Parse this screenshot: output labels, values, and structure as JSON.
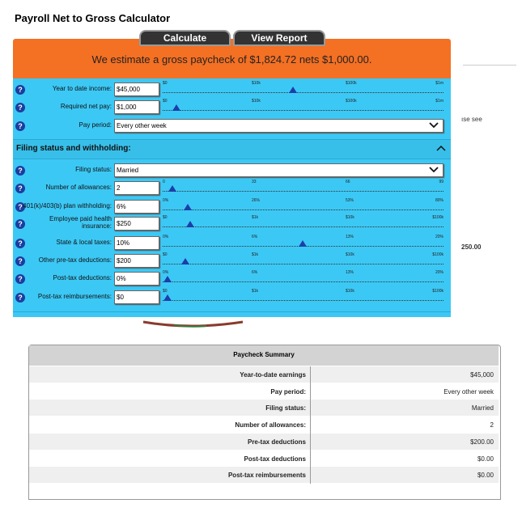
{
  "header": {
    "title": "Payroll Net to Gross Calculator"
  },
  "buttons": [
    "Calculate",
    "View Report"
  ],
  "estimate": "We estimate a gross paycheck of $1,824.72 nets $1,000.00.",
  "section_title": "Filing status and withholding:",
  "side_fragments": [
    "ıse see",
    "250.00"
  ],
  "fields": [
    {
      "label": "Year to date income:",
      "value": "$45,000",
      "scale": [
        "$0",
        "$10k",
        "$100k",
        "$1m"
      ]
    },
    {
      "label": "Required net pay:",
      "value": "$1,000",
      "scale": [
        "$0",
        "$10k",
        "$100k",
        "$1m"
      ]
    },
    {
      "label": "Pay period:",
      "value": "Every other week"
    },
    {
      "label": "Filing status:",
      "value": "Married"
    },
    {
      "label": "Number of allowances:",
      "value": "2",
      "scale": [
        "0",
        "33",
        "66",
        "99"
      ]
    },
    {
      "label": "401(k)/403(b) plan withholding:",
      "value": "6%",
      "scale": [
        "0%",
        "26%",
        "53%",
        "80%"
      ]
    },
    {
      "label": "Employee paid health insurance:",
      "value": "$250",
      "scale": [
        "$0",
        "$1k",
        "$10k",
        "$100k"
      ]
    },
    {
      "label": "State & local taxes:",
      "value": "10%",
      "scale": [
        "0%",
        "6%",
        "13%",
        "20%"
      ]
    },
    {
      "label": "Other pre-tax deductions:",
      "value": "$200",
      "scale": [
        "$0",
        "$1k",
        "$10k",
        "$100k"
      ]
    },
    {
      "label": "Post-tax deductions:",
      "value": "0%",
      "scale": [
        "0%",
        "6%",
        "13%",
        "20%"
      ]
    },
    {
      "label": "Post-tax reimbursements:",
      "value": "$0",
      "scale": [
        "$0",
        "$1k",
        "$10k",
        "$100k"
      ]
    }
  ],
  "summary": {
    "title": "Paycheck Summary",
    "rows": [
      [
        "Year-to-date earnings",
        "$45,000"
      ],
      [
        "Pay period:",
        "Every other week"
      ],
      [
        "Filing status:",
        "Married"
      ],
      [
        "Number of allowances:",
        "2"
      ],
      [
        "Pre-tax deductions",
        "$200.00"
      ],
      [
        "Post-tax deductions",
        "$0.00"
      ],
      [
        "Post-tax reimbursements",
        "$0.00"
      ]
    ]
  }
}
